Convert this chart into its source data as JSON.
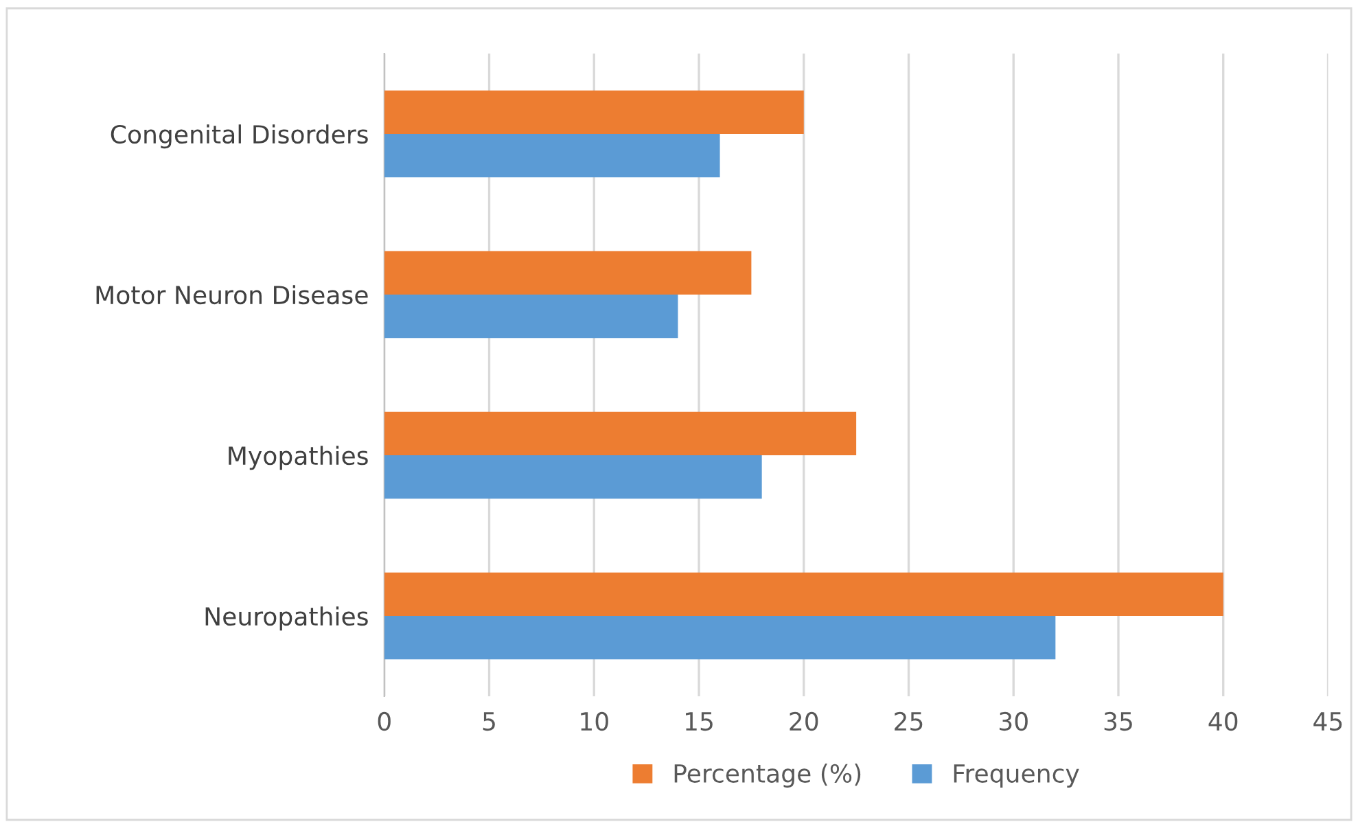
{
  "chart_data": {
    "type": "bar",
    "orientation": "horizontal",
    "categories": [
      "Congenital Disorders",
      "Motor Neuron Disease",
      "Myopathies",
      "Neuropathies"
    ],
    "series": [
      {
        "name": "Percentage (%)",
        "color": "#ed7d31",
        "values": [
          20,
          17.5,
          22.5,
          40
        ]
      },
      {
        "name": "Frequency",
        "color": "#5b9bd5",
        "values": [
          16,
          14,
          18,
          32
        ]
      }
    ],
    "xlim": [
      0,
      45
    ],
    "xticks": [
      0,
      5,
      10,
      15,
      20,
      25,
      30,
      35,
      40,
      45
    ],
    "grid": "x",
    "legend": "bottom"
  }
}
